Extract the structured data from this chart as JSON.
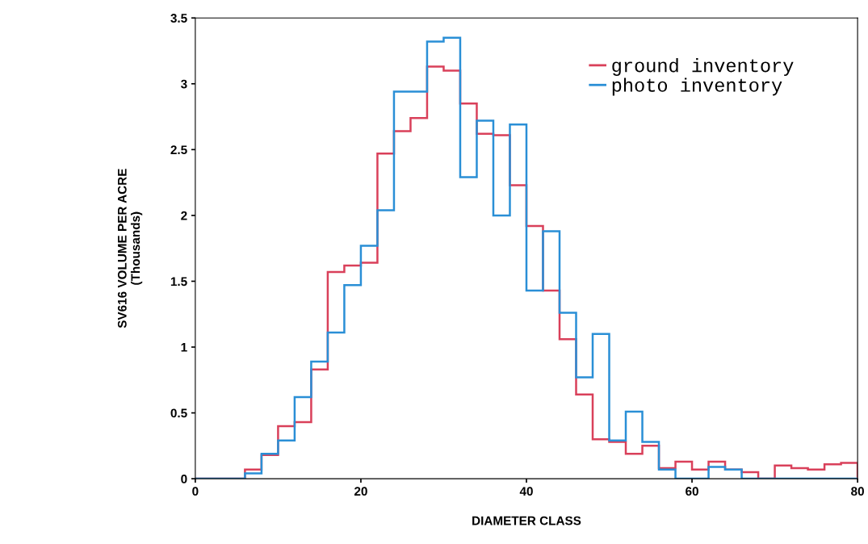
{
  "chart_data": {
    "type": "histogram",
    "xlabel": "DIAMETER CLASS",
    "ylabel": "SV616 VOLUME PER ACRE\n(Thousands)",
    "bins": [
      0,
      2,
      4,
      6,
      8,
      10,
      12,
      14,
      16,
      18,
      20,
      22,
      24,
      26,
      28,
      30,
      32,
      34,
      36,
      38,
      40,
      42,
      44,
      46,
      48,
      50,
      52,
      54,
      56,
      58,
      60,
      62,
      64,
      66,
      68,
      70,
      72,
      74,
      76,
      78,
      80
    ],
    "series": [
      {
        "name": "ground inventory",
        "color": "#d9405a",
        "values": [
          0,
          0,
          0,
          0.07,
          0.18,
          0.4,
          0.43,
          0.83,
          1.57,
          1.62,
          1.64,
          2.47,
          2.64,
          2.74,
          3.13,
          3.1,
          2.85,
          2.62,
          2.61,
          2.23,
          1.92,
          1.43,
          1.06,
          0.64,
          0.3,
          0.28,
          0.19,
          0.25,
          0.08,
          0.13,
          0.07,
          0.13,
          0.07,
          0.05,
          0,
          0.1,
          0.08,
          0.07,
          0.11,
          0.12
        ]
      },
      {
        "name": "photo inventory",
        "color": "#2a8fd6",
        "values": [
          0,
          0,
          0,
          0.04,
          0.19,
          0.29,
          0.62,
          0.89,
          1.11,
          1.47,
          1.77,
          2.04,
          2.94,
          2.94,
          3.32,
          3.35,
          2.29,
          2.72,
          2,
          2.69,
          1.43,
          1.88,
          1.26,
          0.77,
          1.1,
          0.29,
          0.51,
          0.28,
          0.07,
          0,
          0,
          0.09,
          0.07,
          0,
          0,
          0,
          0,
          0,
          0,
          0
        ]
      }
    ],
    "xlim": [
      0,
      80
    ],
    "xticks": [
      0,
      20,
      40,
      60,
      80
    ],
    "ylim": [
      0,
      3.5
    ],
    "yticks": [
      0,
      0.5,
      1,
      1.5,
      2,
      2.5,
      3,
      3.5
    ],
    "legend": "top right",
    "grid": false
  }
}
